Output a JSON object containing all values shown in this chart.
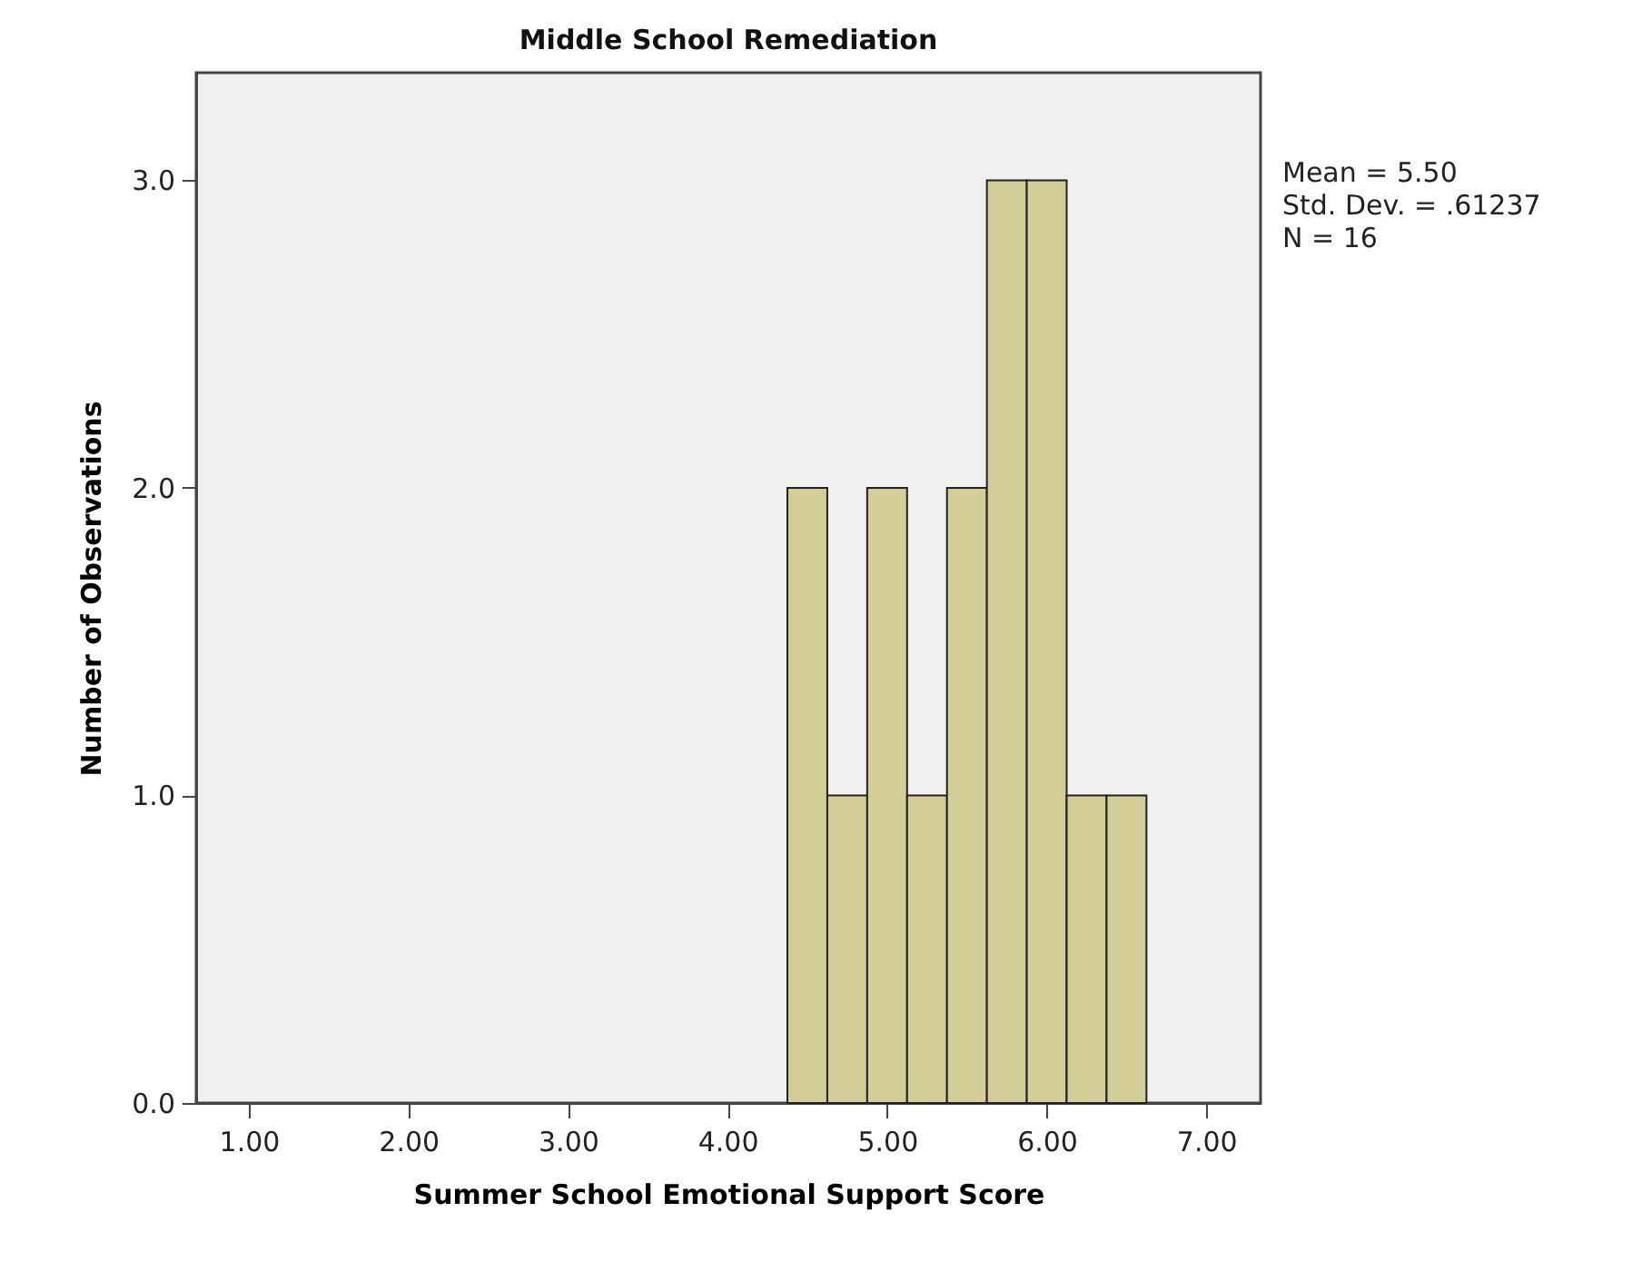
{
  "chart_data": {
    "type": "histogram",
    "title": "Middle School Remediation",
    "xlabel": "Summer School Emotional Support Score",
    "ylabel": "Number of Observations",
    "bins": [
      4.375,
      4.625,
      4.875,
      5.125,
      5.375,
      5.625,
      5.875,
      6.125,
      6.375,
      6.625
    ],
    "values": [
      2,
      1,
      2,
      1,
      2,
      3,
      3,
      1,
      1
    ],
    "color": "#d3ce97",
    "xlim": [
      0.67,
      7.34
    ],
    "xticks": [
      {
        "value": 1,
        "label": "1.00"
      },
      {
        "value": 2,
        "label": "2.00"
      },
      {
        "value": 3,
        "label": "3.00"
      },
      {
        "value": 4,
        "label": "4.00"
      },
      {
        "value": 5,
        "label": "5.00"
      },
      {
        "value": 6,
        "label": "6.00"
      },
      {
        "value": 7,
        "label": "7.00"
      }
    ],
    "ylim": [
      0,
      3.35
    ],
    "yticks": [
      {
        "value": 0,
        "label": "0.0"
      },
      {
        "value": 1,
        "label": "1.0"
      },
      {
        "value": 2,
        "label": "2.0"
      },
      {
        "value": 3,
        "label": "3.0"
      }
    ],
    "grid": false,
    "annotations": [
      "Mean = 5.50",
      "Std. Dev. = .61237",
      "N = 16"
    ]
  }
}
